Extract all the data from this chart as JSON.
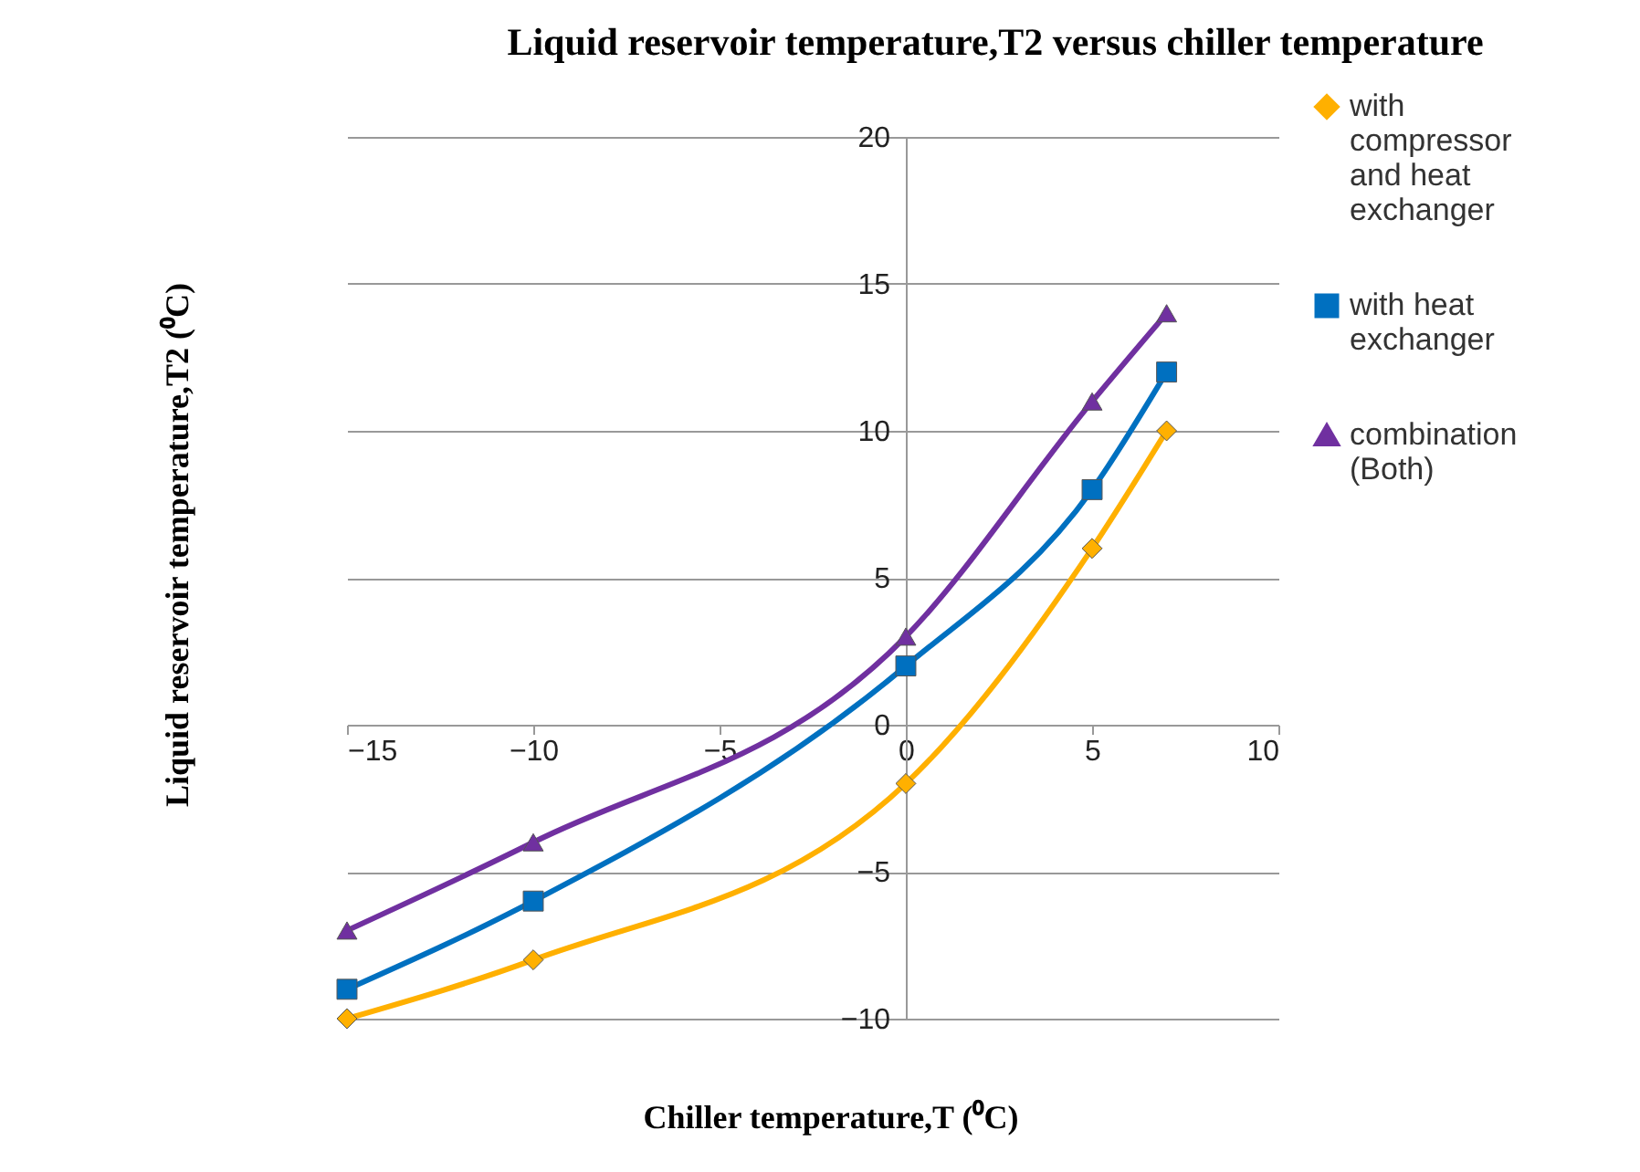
{
  "chart_data": {
    "type": "line",
    "title": "Liquid reservoir temperature,T2 versus chiller temperature",
    "xlabel": "Chiller temperature,T (⁰C)",
    "ylabel": "Liquid reservoir temperature,T2 (⁰C)",
    "x": [
      -15,
      -10,
      0,
      5,
      7
    ],
    "series": [
      {
        "name": "with compressor and heat exchanger",
        "color": "#ffb000",
        "marker": "diamond",
        "values": [
          -10,
          -8,
          -2,
          6,
          10
        ]
      },
      {
        "name": "with heat exchanger",
        "color": "#0070c0",
        "marker": "square",
        "values": [
          -9,
          -6,
          2,
          8,
          12
        ]
      },
      {
        "name": "combination (Both)",
        "color": "#7030a0",
        "marker": "triangle",
        "values": [
          -7,
          -4,
          3,
          11,
          14
        ]
      }
    ],
    "xlim": [
      -15,
      10
    ],
    "xticks": [
      -15,
      -10,
      -5,
      0,
      5,
      10
    ],
    "ylim": [
      -10,
      20
    ],
    "yticks": [
      -10,
      -5,
      0,
      5,
      10,
      15,
      20
    ],
    "grid": "y",
    "legend": "right",
    "line_style": "solid"
  }
}
